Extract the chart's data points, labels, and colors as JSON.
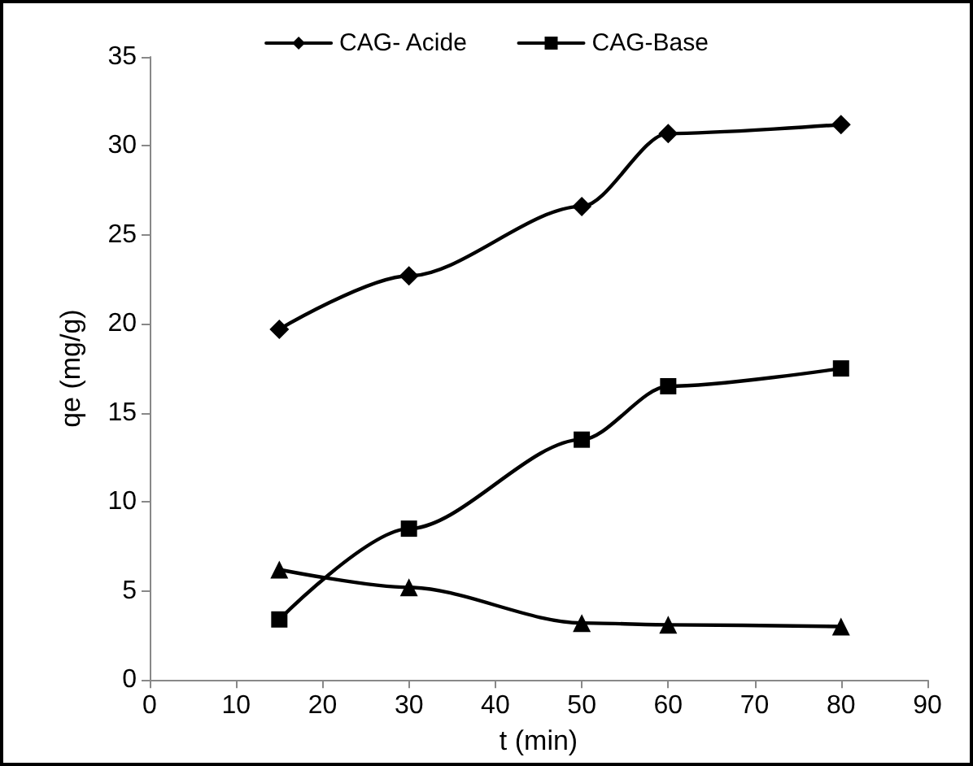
{
  "chart_data": {
    "type": "line",
    "xlabel": "t (min)",
    "ylabel": "qe (mg/g)",
    "x": [
      15,
      30,
      50,
      60,
      80
    ],
    "series": [
      {
        "name": "CAG- Acide",
        "color": "#000000",
        "marker": "diamond",
        "values": [
          19.7,
          22.7,
          26.6,
          30.7,
          31.2
        ]
      },
      {
        "name": "CAG-Base",
        "color": "#000000",
        "marker": "square",
        "values": [
          3.4,
          8.5,
          13.5,
          16.5,
          17.5
        ]
      },
      {
        "color": "#000000",
        "marker": "triangle",
        "values": [
          6.2,
          5.2,
          3.2,
          3.1,
          3.0
        ]
      }
    ],
    "xlim": [
      0,
      90
    ],
    "xticks": [
      0,
      10,
      20,
      30,
      40,
      50,
      60,
      70,
      80,
      90
    ],
    "ylim": [
      0,
      35
    ],
    "yticks": [
      0,
      5,
      10,
      15,
      20,
      25,
      30,
      35
    ],
    "grid": false,
    "legend": "top",
    "line_style": "solid"
  }
}
